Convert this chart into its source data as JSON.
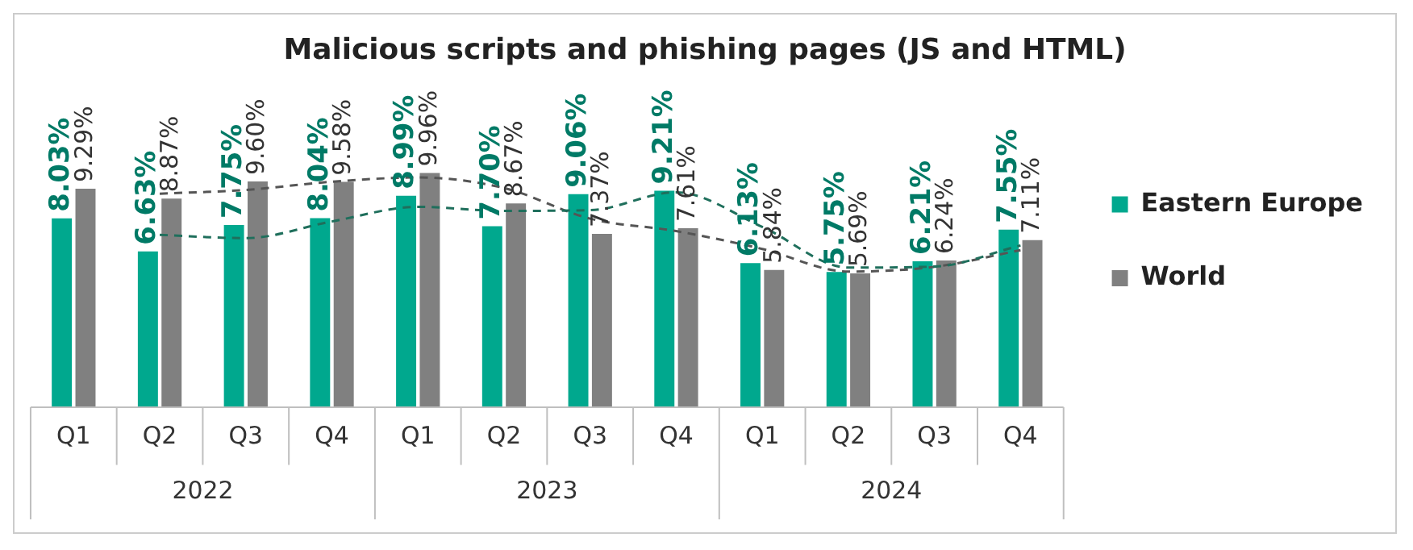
{
  "chart_data": {
    "type": "bar",
    "title": "Malicious scripts and phishing pages (JS and HTML)",
    "categories": [
      "Q1",
      "Q2",
      "Q3",
      "Q4",
      "Q1",
      "Q2",
      "Q3",
      "Q4",
      "Q1",
      "Q2",
      "Q3",
      "Q4"
    ],
    "annotations": [
      "2022",
      "2023",
      "2024"
    ],
    "series": [
      {
        "name": "Eastern Europe",
        "color": "#00a88e",
        "values": [
          8.03,
          6.63,
          7.75,
          8.04,
          8.99,
          7.7,
          9.06,
          9.21,
          6.13,
          5.75,
          6.21,
          7.55
        ],
        "value_labels": [
          "8.03%",
          "6.63%",
          "7.75%",
          "8.04%",
          "8.99%",
          "7.70%",
          "9.06%",
          "9.21%",
          "6.13%",
          "5.75%",
          "6.21%",
          "7.55%"
        ]
      },
      {
        "name": "World",
        "color": "#808080",
        "values": [
          9.29,
          8.87,
          9.6,
          9.58,
          9.96,
          8.67,
          7.37,
          7.61,
          5.84,
          5.69,
          6.24,
          7.11
        ],
        "value_labels": [
          "9.29%",
          "8.87%",
          "9.60%",
          "9.58%",
          "9.96%",
          "8.67%",
          "7.37%",
          "7.61%",
          "5.84%",
          "5.69%",
          "6.24%",
          "7.11%"
        ]
      },
      {
        "type": "line",
        "color": "#1f6f5c",
        "line_style": "dashed",
        "values": [
          null,
          7.33,
          7.19,
          7.9,
          8.52,
          8.35,
          8.38,
          9.14,
          7.67,
          5.94,
          5.98,
          6.88
        ]
      },
      {
        "type": "line",
        "color": "#555555",
        "line_style": "dashed",
        "values": [
          null,
          9.08,
          9.24,
          9.59,
          9.77,
          9.32,
          8.02,
          7.49,
          6.73,
          5.77,
          5.97,
          6.68
        ]
      }
    ],
    "legend": "right",
    "grid": false
  }
}
